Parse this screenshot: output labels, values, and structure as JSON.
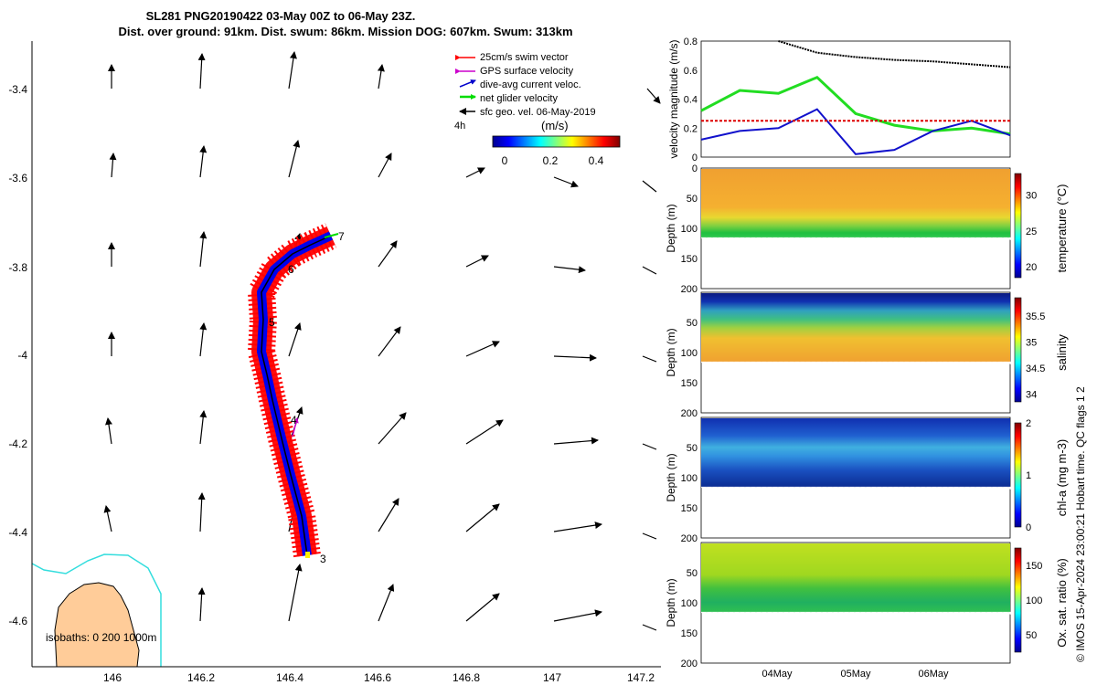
{
  "title": {
    "line1": "SL281 PNG20190422 03-May 00Z to 06-May 23Z.",
    "line2": "Dist. over ground: 91km. Dist. swum: 86km. Mission DOG: 607km. Swum: 313km"
  },
  "credit": "© IMOS 15-Apr-2024 23:00:21 Hobart time. QC flags 1  2",
  "map": {
    "lon_ticks": [
      "146",
      "146.2",
      "146.4",
      "146.6",
      "146.8",
      "147",
      "147.2"
    ],
    "lat_ticks": [
      "-3.4",
      "-3.6",
      "-3.8",
      "-4",
      "-4.2",
      "-4.4",
      "-4.6"
    ],
    "legend": [
      {
        "label": "25cm/s swim vector",
        "color": "#ff0000"
      },
      {
        "label": "GPS surface velocity",
        "color": "#cc00cc"
      },
      {
        "label": "dive-avg current veloc.",
        "color": "#0000cc"
      },
      {
        "label": "net glider velocity",
        "color": "#00dd00"
      },
      {
        "label": "sfc geo. vel. 06-May-2019",
        "color": "#000000"
      }
    ],
    "legend_4h": "4h",
    "cbar_unit": "(m/s)",
    "cbar_ticks": [
      "0",
      "0.2",
      "0.4"
    ],
    "isobaths_label": "isobaths: 0   200  1000m",
    "day_markers": [
      "7",
      "6",
      "5",
      "4",
      "3"
    ]
  },
  "chart_data": [
    {
      "type": "line",
      "ylabel": "velocity magnitude (m/s)",
      "ylim": [
        0,
        0.8
      ],
      "yticks": [
        "0",
        "0.2",
        "0.4",
        "0.6",
        "0.8"
      ],
      "x": [
        "03May",
        "03May12",
        "04May",
        "04May12",
        "05May",
        "05May12",
        "06May",
        "06May12",
        "07May"
      ],
      "series": [
        {
          "name": "net glider velocity",
          "color": "#22dd22",
          "values": [
            0.32,
            0.46,
            0.44,
            0.55,
            0.3,
            0.22,
            0.18,
            0.2,
            0.16
          ]
        },
        {
          "name": "dive-avg current",
          "color": "#1111cc",
          "values": [
            0.12,
            0.18,
            0.2,
            0.33,
            0.02,
            0.05,
            0.18,
            0.25,
            0.15
          ]
        },
        {
          "name": "swim reference",
          "color": "#dd0000",
          "values": [
            0.25,
            0.25,
            0.25,
            0.25,
            0.25,
            0.25,
            0.25,
            0.25,
            0.25
          ]
        },
        {
          "name": "sfc geo. vel.",
          "color": "#000000",
          "values": [
            null,
            null,
            0.8,
            0.72,
            0.69,
            0.67,
            0.66,
            0.64,
            0.62
          ]
        }
      ]
    },
    {
      "type": "heatmap",
      "ylabel": "Depth (m)",
      "cbar_label": "temperature (°C)",
      "ylim": [
        0,
        200
      ],
      "yticks": [
        "0",
        "50",
        "100",
        "150",
        "200"
      ],
      "cbar_ticks": [
        "20",
        "25",
        "30"
      ],
      "cbar_range": [
        18.5,
        33
      ]
    },
    {
      "type": "heatmap",
      "ylabel": "Depth (m)",
      "cbar_label": "salinity",
      "ylim": [
        0,
        200
      ],
      "yticks": [
        "50",
        "100",
        "150",
        "200"
      ],
      "cbar_ticks": [
        "34",
        "34.5",
        "35",
        "35.5"
      ],
      "cbar_range": [
        33.85,
        35.85
      ]
    },
    {
      "type": "heatmap",
      "ylabel": "Depth (m)",
      "cbar_label": "chl-a (mg m-3)",
      "ylim": [
        0,
        200
      ],
      "yticks": [
        "50",
        "100",
        "150",
        "200"
      ],
      "cbar_ticks": [
        "0",
        "1",
        "2"
      ],
      "cbar_range": [
        0,
        2
      ]
    },
    {
      "type": "heatmap",
      "ylabel": "Depth (m)",
      "cbar_label": "Ox. sat. ratio (%)",
      "ylim": [
        0,
        200
      ],
      "yticks": [
        "50",
        "100",
        "150",
        "200"
      ],
      "cbar_ticks": [
        "50",
        "100",
        "150"
      ],
      "cbar_range": [
        25,
        175
      ]
    }
  ],
  "time_ticks": [
    "04May",
    "05May",
    "06May"
  ]
}
